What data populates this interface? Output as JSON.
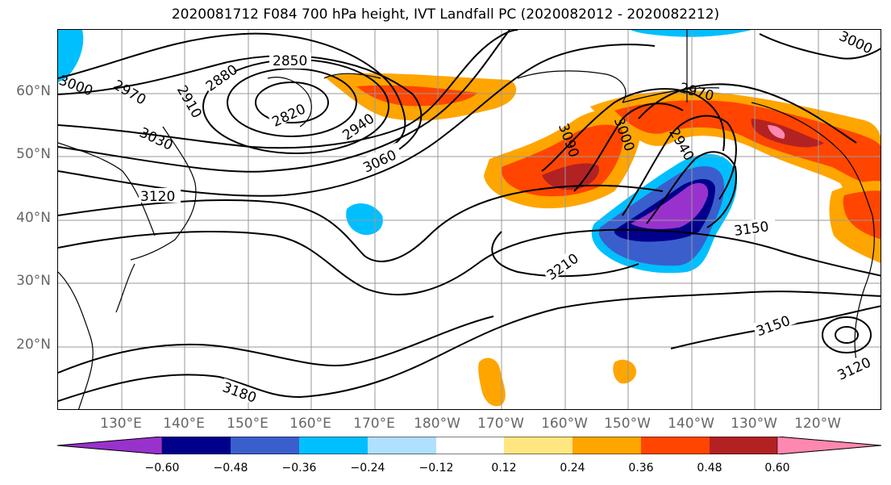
{
  "title": "2020081712 F084 700 hPa height, IVT Landfall PC (2020082012 - 2020082212)",
  "lat_labels": [
    "60°N",
    "50°N",
    "40°N",
    "30°N",
    "20°N"
  ],
  "lon_labels": [
    "130°E",
    "140°E",
    "150°E",
    "160°E",
    "170°E",
    "180°W",
    "170°W",
    "160°W",
    "150°W",
    "140°W",
    "130°W",
    "120°W"
  ],
  "contour_labels": [
    "2850",
    "2880",
    "3000",
    "2970",
    "2910",
    "2820",
    "2940",
    "3030",
    "3060",
    "3120",
    "3090",
    "3000",
    "2970",
    "2940",
    "3150",
    "3210",
    "3150",
    "3120",
    "3180",
    "3000"
  ],
  "colorbar": {
    "ticks": [
      "−0.60",
      "−0.48",
      "−0.36",
      "−0.24",
      "−0.12",
      "0.12",
      "0.24",
      "0.36",
      "0.48",
      "0.60"
    ],
    "colors": [
      "#9932cc",
      "#00008b",
      "#3a5fcd",
      "#00bfff",
      "#b0e0ff",
      "#ffffff",
      "#ffe680",
      "#ffa500",
      "#ff4500",
      "#b22222",
      "#ff88b0"
    ]
  }
}
